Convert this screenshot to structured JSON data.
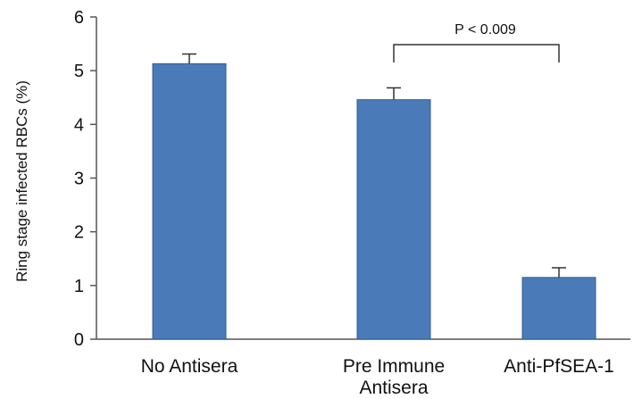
{
  "chart_data": {
    "type": "bar",
    "title": "",
    "xlabel": "",
    "ylabel": "Ring stage infected RBCs (%)",
    "categories": [
      [
        "No Antisera"
      ],
      [
        "Pre Immune",
        "Antisera"
      ],
      [
        "Anti-PfSEA-1"
      ]
    ],
    "values": [
      5.13,
      4.46,
      1.15
    ],
    "errors": [
      0.18,
      0.22,
      0.18
    ],
    "ylim": [
      0,
      6
    ],
    "yticks": [
      "0",
      "1",
      "2",
      "3",
      "4",
      "5",
      "6"
    ],
    "bar_color": "#4a7ab8",
    "grid": false,
    "annotation": {
      "text": "P < 0.009",
      "between": [
        1,
        2
      ]
    }
  }
}
